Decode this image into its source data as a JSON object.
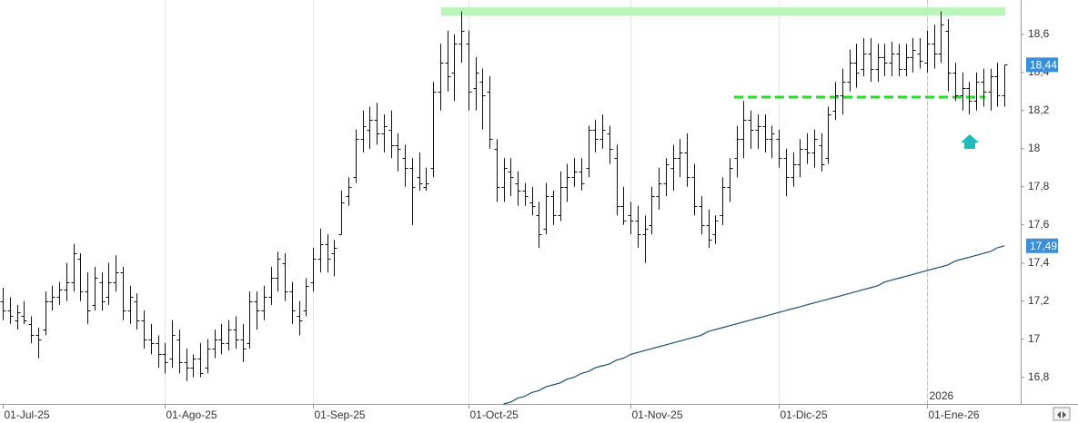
{
  "chart_data": {
    "type": "ohlc",
    "categories": [
      "01-Jul-25",
      null,
      null,
      null,
      null,
      null,
      null,
      null,
      null,
      null,
      null,
      null,
      null,
      null,
      null,
      null,
      null,
      null,
      null,
      null,
      null,
      null,
      null,
      "01-Ago-25",
      null,
      null,
      null,
      null,
      null,
      null,
      null,
      null,
      null,
      null,
      null,
      null,
      null,
      null,
      null,
      null,
      null,
      null,
      null,
      null,
      "01-Sep-25",
      null,
      null,
      null,
      null,
      null,
      null,
      null,
      null,
      null,
      null,
      null,
      null,
      null,
      null,
      null,
      null,
      null,
      null,
      null,
      null,
      null,
      "01-Oct-25",
      null,
      null,
      null,
      null,
      null,
      null,
      null,
      null,
      null,
      null,
      null,
      null,
      null,
      null,
      null,
      null,
      null,
      null,
      null,
      null,
      null,
      null,
      "01-Nov-25",
      null,
      null,
      null,
      null,
      null,
      null,
      null,
      null,
      null,
      null,
      null,
      null,
      null,
      null,
      null,
      null,
      null,
      null,
      null,
      null,
      "01-Dic-25",
      null,
      null,
      null,
      null,
      null,
      null,
      null,
      null,
      null,
      null,
      null,
      null,
      null,
      null,
      null,
      null,
      null,
      null,
      null,
      null,
      "01-Ene-26",
      null,
      null,
      null,
      null,
      null,
      null,
      null,
      null,
      null,
      null,
      null
    ],
    "ohlc": [
      [
        17.2,
        17.27,
        17.1,
        17.15
      ],
      [
        17.15,
        17.22,
        17.08,
        17.12
      ],
      [
        17.1,
        17.18,
        17.05,
        17.14
      ],
      [
        17.12,
        17.2,
        17.08,
        17.1
      ],
      [
        17.08,
        17.12,
        16.98,
        17.02
      ],
      [
        17.02,
        17.06,
        16.9,
        17.0
      ],
      [
        17.05,
        17.25,
        17.02,
        17.2
      ],
      [
        17.2,
        17.28,
        17.15,
        17.22
      ],
      [
        17.22,
        17.3,
        17.18,
        17.26
      ],
      [
        17.26,
        17.4,
        17.2,
        17.3
      ],
      [
        17.3,
        17.5,
        17.25,
        17.45
      ],
      [
        17.42,
        17.45,
        17.2,
        17.25
      ],
      [
        17.25,
        17.35,
        17.08,
        17.15
      ],
      [
        17.18,
        17.38,
        17.15,
        17.32
      ],
      [
        17.3,
        17.35,
        17.15,
        17.2
      ],
      [
        17.22,
        17.4,
        17.18,
        17.3
      ],
      [
        17.3,
        17.44,
        17.25,
        17.35
      ],
      [
        17.35,
        17.38,
        17.1,
        17.15
      ],
      [
        17.15,
        17.28,
        17.08,
        17.22
      ],
      [
        17.2,
        17.24,
        17.05,
        17.1
      ],
      [
        17.1,
        17.15,
        16.95,
        17.0
      ],
      [
        17.0,
        17.08,
        16.92,
        16.98
      ],
      [
        16.98,
        17.02,
        16.85,
        16.92
      ],
      [
        16.92,
        16.98,
        16.82,
        16.88
      ],
      [
        16.9,
        17.1,
        16.85,
        17.02
      ],
      [
        17.0,
        17.05,
        16.82,
        16.88
      ],
      [
        16.88,
        16.95,
        16.78,
        16.85
      ],
      [
        16.85,
        16.92,
        16.8,
        16.9
      ],
      [
        16.9,
        16.98,
        16.8,
        16.82
      ],
      [
        16.85,
        17.0,
        16.82,
        16.95
      ],
      [
        16.95,
        17.05,
        16.9,
        17.0
      ],
      [
        17.0,
        17.08,
        16.92,
        16.98
      ],
      [
        16.98,
        17.1,
        16.94,
        17.05
      ],
      [
        17.05,
        17.12,
        16.95,
        17.0
      ],
      [
        17.0,
        17.08,
        16.88,
        16.95
      ],
      [
        16.98,
        17.25,
        16.95,
        17.2
      ],
      [
        17.2,
        17.25,
        17.05,
        17.15
      ],
      [
        17.15,
        17.28,
        17.1,
        17.22
      ],
      [
        17.22,
        17.38,
        17.18,
        17.32
      ],
      [
        17.32,
        17.46,
        17.25,
        17.42
      ],
      [
        17.4,
        17.45,
        17.2,
        17.25
      ],
      [
        17.25,
        17.3,
        17.08,
        17.15
      ],
      [
        17.12,
        17.2,
        17.02,
        17.1
      ],
      [
        17.15,
        17.32,
        17.12,
        17.28
      ],
      [
        17.3,
        17.48,
        17.25,
        17.42
      ],
      [
        17.42,
        17.58,
        17.35,
        17.5
      ],
      [
        17.5,
        17.55,
        17.35,
        17.42
      ],
      [
        17.45,
        17.52,
        17.33,
        17.48
      ],
      [
        17.55,
        17.78,
        17.55,
        17.72
      ],
      [
        17.75,
        17.85,
        17.7,
        17.8
      ],
      [
        17.85,
        18.1,
        17.82,
        18.05
      ],
      [
        18.05,
        18.2,
        17.98,
        18.12
      ],
      [
        18.1,
        18.22,
        18.0,
        18.15
      ],
      [
        18.15,
        18.24,
        18.02,
        18.08
      ],
      [
        18.08,
        18.18,
        17.98,
        18.12
      ],
      [
        18.1,
        18.2,
        17.95,
        18.02
      ],
      [
        18.02,
        18.08,
        17.88,
        18.0
      ],
      [
        17.95,
        18.02,
        17.8,
        17.9
      ],
      [
        17.9,
        17.95,
        17.6,
        17.8
      ],
      [
        17.85,
        17.98,
        17.78,
        17.82
      ],
      [
        17.8,
        17.9,
        17.78,
        17.82
      ],
      [
        17.9,
        18.35,
        17.85,
        18.3
      ],
      [
        18.3,
        18.55,
        18.2,
        18.45
      ],
      [
        18.45,
        18.62,
        18.3,
        18.38
      ],
      [
        18.4,
        18.6,
        18.25,
        18.55
      ],
      [
        18.55,
        18.72,
        18.45,
        18.62
      ],
      [
        18.55,
        18.62,
        18.2,
        18.3
      ],
      [
        18.32,
        18.48,
        18.2,
        18.4
      ],
      [
        18.35,
        18.42,
        18.1,
        18.28
      ],
      [
        18.3,
        18.38,
        18.0,
        18.05
      ],
      [
        18.0,
        18.05,
        17.72,
        17.8
      ],
      [
        17.8,
        17.95,
        17.72,
        17.9
      ],
      [
        17.88,
        17.95,
        17.75,
        17.85
      ],
      [
        17.82,
        17.88,
        17.7,
        17.78
      ],
      [
        17.78,
        17.82,
        17.7,
        17.75
      ],
      [
        17.72,
        17.8,
        17.65,
        17.7
      ],
      [
        17.65,
        17.72,
        17.48,
        17.55
      ],
      [
        17.58,
        17.82,
        17.55,
        17.75
      ],
      [
        17.75,
        17.78,
        17.6,
        17.65
      ],
      [
        17.65,
        17.88,
        17.62,
        17.8
      ],
      [
        17.8,
        17.92,
        17.72,
        17.85
      ],
      [
        17.85,
        17.95,
        17.8,
        17.88
      ],
      [
        17.88,
        17.95,
        17.78,
        17.82
      ],
      [
        17.9,
        18.12,
        17.85,
        18.1
      ],
      [
        18.1,
        18.15,
        17.98,
        18.05
      ],
      [
        18.05,
        18.18,
        18.0,
        18.1
      ],
      [
        18.08,
        18.12,
        17.92,
        18.0
      ],
      [
        17.95,
        18.02,
        17.65,
        17.7
      ],
      [
        17.7,
        17.8,
        17.6,
        17.62
      ],
      [
        17.65,
        17.72,
        17.55,
        17.62
      ],
      [
        17.62,
        17.7,
        17.48,
        17.55
      ],
      [
        17.55,
        17.65,
        17.4,
        17.58
      ],
      [
        17.6,
        17.8,
        17.55,
        17.75
      ],
      [
        17.75,
        17.9,
        17.68,
        17.82
      ],
      [
        17.82,
        17.95,
        17.75,
        17.92
      ],
      [
        17.9,
        18.02,
        17.78,
        17.95
      ],
      [
        17.95,
        18.05,
        17.85,
        17.98
      ],
      [
        17.98,
        18.08,
        17.8,
        17.85
      ],
      [
        17.85,
        17.92,
        17.65,
        17.7
      ],
      [
        17.7,
        17.75,
        17.55,
        17.6
      ],
      [
        17.6,
        17.68,
        17.48,
        17.52
      ],
      [
        17.55,
        17.65,
        17.5,
        17.62
      ],
      [
        17.65,
        17.85,
        17.6,
        17.8
      ],
      [
        17.8,
        17.95,
        17.72,
        17.9
      ],
      [
        17.95,
        18.12,
        17.85,
        18.05
      ],
      [
        18.05,
        18.25,
        17.95,
        18.15
      ],
      [
        18.15,
        18.2,
        18.0,
        18.1
      ],
      [
        18.1,
        18.18,
        18.0,
        18.12
      ],
      [
        18.12,
        18.18,
        17.98,
        18.05
      ],
      [
        18.05,
        18.12,
        17.95,
        18.08
      ],
      [
        18.05,
        18.1,
        17.9,
        17.95
      ],
      [
        17.95,
        18.0,
        17.75,
        17.85
      ],
      [
        17.85,
        17.98,
        17.8,
        17.92
      ],
      [
        17.92,
        18.05,
        17.85,
        18.0
      ],
      [
        18.0,
        18.08,
        17.92,
        17.98
      ],
      [
        17.98,
        18.1,
        17.9,
        18.05
      ],
      [
        18.02,
        18.08,
        17.88,
        17.92
      ],
      [
        17.95,
        18.22,
        17.92,
        18.18
      ],
      [
        18.2,
        18.35,
        18.15,
        18.28
      ],
      [
        18.28,
        18.42,
        18.18,
        18.35
      ],
      [
        18.35,
        18.52,
        18.3,
        18.45
      ],
      [
        18.45,
        18.55,
        18.32,
        18.4
      ],
      [
        18.42,
        18.58,
        18.38,
        18.5
      ],
      [
        18.5,
        18.58,
        18.35,
        18.42
      ],
      [
        18.42,
        18.55,
        18.35,
        18.48
      ],
      [
        18.48,
        18.55,
        18.38,
        18.45
      ],
      [
        18.45,
        18.56,
        18.38,
        18.5
      ],
      [
        18.5,
        18.55,
        18.38,
        18.42
      ],
      [
        18.42,
        18.55,
        18.38,
        18.48
      ],
      [
        18.48,
        18.58,
        18.4,
        18.52
      ],
      [
        18.5,
        18.58,
        18.42,
        18.46
      ],
      [
        18.45,
        18.62,
        18.4,
        18.55
      ],
      [
        18.55,
        18.65,
        18.42,
        18.5
      ],
      [
        18.5,
        18.72,
        18.45,
        18.65
      ],
      [
        18.62,
        18.68,
        18.3,
        18.4
      ],
      [
        18.4,
        18.45,
        18.25,
        18.28
      ],
      [
        18.28,
        18.4,
        18.2,
        18.32
      ],
      [
        18.32,
        18.35,
        18.18,
        18.25
      ],
      [
        18.25,
        18.4,
        18.2,
        18.35
      ],
      [
        18.35,
        18.42,
        18.22,
        18.3
      ],
      [
        18.3,
        18.42,
        18.2,
        18.38
      ],
      [
        18.38,
        18.45,
        18.22,
        18.28
      ],
      [
        18.28,
        18.44,
        18.22,
        18.44
      ]
    ],
    "ohlc_color": "#111111",
    "close_label": "18,44",
    "close_label_color": "#3b8fd8",
    "series": [
      {
        "color": "#1b4f72",
        "value_label": "17,49",
        "values": [
          null,
          null,
          null,
          null,
          null,
          null,
          null,
          null,
          null,
          null,
          null,
          null,
          null,
          null,
          null,
          null,
          null,
          null,
          null,
          null,
          null,
          null,
          null,
          null,
          null,
          null,
          null,
          null,
          null,
          null,
          null,
          null,
          null,
          null,
          null,
          null,
          null,
          null,
          null,
          null,
          null,
          null,
          null,
          null,
          null,
          null,
          null,
          null,
          null,
          null,
          null,
          null,
          null,
          null,
          null,
          null,
          null,
          null,
          null,
          null,
          null,
          null,
          null,
          null,
          null,
          null,
          null,
          null,
          null,
          null,
          null,
          16.66,
          16.67,
          16.69,
          16.7,
          16.72,
          16.73,
          16.75,
          16.76,
          16.77,
          16.79,
          16.8,
          16.82,
          16.83,
          16.85,
          16.86,
          16.87,
          16.89,
          16.9,
          16.92,
          16.93,
          16.94,
          16.95,
          16.96,
          16.97,
          16.98,
          16.99,
          17.0,
          17.01,
          17.02,
          17.04,
          17.05,
          17.06,
          17.07,
          17.08,
          17.09,
          17.1,
          17.11,
          17.12,
          17.13,
          17.14,
          17.15,
          17.16,
          17.17,
          17.18,
          17.19,
          17.2,
          17.21,
          17.22,
          17.23,
          17.24,
          17.25,
          17.26,
          17.27,
          17.28,
          17.3,
          17.31,
          17.32,
          17.33,
          17.34,
          17.35,
          17.36,
          17.37,
          17.38,
          17.39,
          17.41,
          17.42,
          17.43,
          17.44,
          17.45,
          17.46,
          17.48,
          17.49
        ]
      }
    ],
    "levels": [
      {
        "value": 18.72,
        "color": "#b9f4b9",
        "dashed": false
      },
      {
        "value": 18.27,
        "color": "#22dd22",
        "dashed": true
      }
    ],
    "year_label": "2026",
    "ylim": [
      16.66,
      18.78
    ],
    "yticks": [
      {
        "value": 16.8,
        "label": "16,8"
      },
      17,
      {
        "value": 17.2,
        "label": "17,2"
      },
      {
        "value": 17.4,
        "label": "17,4"
      },
      {
        "value": 17.6,
        "label": "17,6"
      },
      {
        "value": 17.8,
        "label": "17,8"
      },
      18,
      {
        "value": 18.2,
        "label": "18,2"
      },
      {
        "value": 18.4,
        "label": "18,4"
      },
      {
        "value": 18.6,
        "label": "18,6"
      }
    ],
    "grid": "x"
  }
}
